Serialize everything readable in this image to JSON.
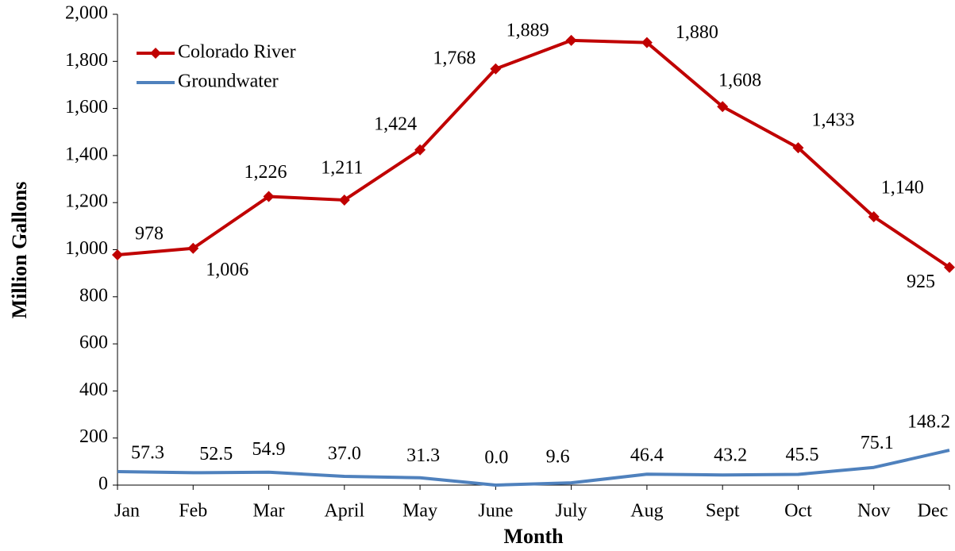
{
  "chart_data": {
    "type": "line",
    "x_label": "Month",
    "y_label": "Million Gallons",
    "categories": [
      "Jan",
      "Feb",
      "Mar",
      "April",
      "May",
      "June",
      "July",
      "Aug",
      "Sept",
      "Oct",
      "Nov",
      "Dec"
    ],
    "series": [
      {
        "name": "Colorado River",
        "color": "#c00000",
        "marker": "diamond",
        "values": [
          978,
          1006,
          1226,
          1211,
          1424,
          1768,
          1889,
          1880,
          1608,
          1433,
          1140,
          925
        ],
        "value_labels": [
          "978",
          "1,006",
          "1,226",
          "1,211",
          "1,424",
          "1,768",
          "1,889",
          "1,880",
          "1,608",
          "1,433",
          "1,140",
          "925"
        ]
      },
      {
        "name": "Groundwater",
        "color": "#4f81bd",
        "marker": "none",
        "values": [
          57.3,
          52.5,
          54.9,
          37.0,
          31.3,
          0.0,
          9.6,
          46.4,
          43.2,
          45.5,
          75.1,
          148.2
        ],
        "value_labels": [
          "57.3",
          "52.5",
          "54.9",
          "37.0",
          "31.3",
          "0.0",
          "9.6",
          "46.4",
          "43.2",
          "45.5",
          "75.1",
          "148.2"
        ]
      }
    ],
    "ylim": [
      0,
      2000
    ],
    "yticks": [
      0,
      200,
      400,
      600,
      800,
      {
        "value": 1000,
        "label": "1,000"
      },
      {
        "value": 1200,
        "label": "1,200"
      },
      {
        "value": 1400,
        "label": "1,400"
      },
      {
        "value": 1600,
        "label": "1,600"
      },
      {
        "value": 1800,
        "label": "1,800"
      },
      {
        "value": 2000,
        "label": "2,000"
      }
    ],
    "grid": false,
    "legend": "top-left"
  }
}
